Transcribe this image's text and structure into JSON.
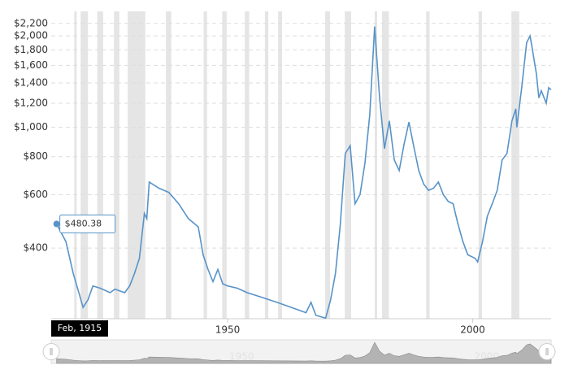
{
  "chart_data": {
    "type": "line",
    "yscale": "log",
    "grid": true,
    "color": "#5893c8",
    "recession_color": "#e5e5e5",
    "x": [
      1915.1,
      1917,
      1918.5,
      1919.5,
      1920.5,
      1921.5,
      1922.5,
      1924,
      1926,
      1927,
      1929,
      1930,
      1931,
      1932,
      1933,
      1933.5,
      1934,
      1936,
      1938,
      1940,
      1942,
      1944,
      1945,
      1946,
      1947,
      1948,
      1949,
      1950,
      1952,
      1954,
      1957,
      1960,
      1963,
      1966,
      1967,
      1968,
      1970,
      1971,
      1972,
      1973,
      1974,
      1975,
      1976,
      1977,
      1978,
      1979,
      1980,
      1981,
      1982,
      1983,
      1984,
      1985,
      1986,
      1987,
      1988,
      1989,
      1990,
      1991,
      1992,
      1993,
      1994,
      1995,
      1996,
      1997,
      1998,
      1999,
      2000.5,
      2001,
      2002,
      2003,
      2004,
      2005,
      2006,
      2007,
      2008,
      2008.8,
      2009,
      2010,
      2011,
      2011.7,
      2012,
      2013,
      2013.5,
      2014,
      2015,
      2015.5,
      2016
    ],
    "values": [
      480.38,
      420,
      330,
      290,
      255,
      270,
      300,
      295,
      285,
      293,
      285,
      300,
      330,
      370,
      520,
      500,
      660,
      630,
      610,
      560,
      500,
      470,
      380,
      340,
      310,
      340,
      305,
      300,
      295,
      285,
      275,
      265,
      255,
      245,
      265,
      240,
      235,
      270,
      330,
      480,
      820,
      870,
      560,
      600,
      760,
      1100,
      2150,
      1250,
      850,
      1050,
      780,
      720,
      880,
      1040,
      860,
      720,
      650,
      620,
      630,
      660,
      600,
      570,
      560,
      480,
      420,
      380,
      370,
      360,
      420,
      510,
      560,
      620,
      780,
      820,
      1050,
      1150,
      1000,
      1350,
      1900,
      2000,
      1880,
      1500,
      1250,
      1320,
      1200,
      1350,
      1330
    ],
    "recessions": [
      [
        1918.7,
        1919.2
      ],
      [
        1920.0,
        1921.5
      ],
      [
        1923.4,
        1924.6
      ],
      [
        1926.8,
        1927.9
      ],
      [
        1929.6,
        1933.2
      ],
      [
        1937.4,
        1938.5
      ],
      [
        1945.1,
        1945.8
      ],
      [
        1948.9,
        1949.8
      ],
      [
        1953.5,
        1954.4
      ],
      [
        1957.6,
        1958.3
      ],
      [
        1960.3,
        1961.1
      ],
      [
        1969.9,
        1970.9
      ],
      [
        1973.9,
        1975.2
      ],
      [
        1980.0,
        1980.5
      ],
      [
        1981.5,
        1982.9
      ],
      [
        1990.5,
        1991.2
      ],
      [
        2001.2,
        2001.9
      ],
      [
        2007.9,
        2009.5
      ]
    ],
    "xlim": [
      1914,
      2016
    ],
    "xticks": [
      1950,
      2000
    ],
    "ylim": [
      234,
      2410
    ],
    "yticks": [
      {
        "value": 400,
        "label": "$400"
      },
      {
        "value": 600,
        "label": "$600"
      },
      {
        "value": 800,
        "label": "$800"
      },
      {
        "value": 1000,
        "label": "$1,000"
      },
      {
        "value": 1200,
        "label": "$1,200"
      },
      {
        "value": 1400,
        "label": "$1,400"
      },
      {
        "value": 1600,
        "label": "$1,600"
      },
      {
        "value": 1800,
        "label": "$1,800"
      },
      {
        "value": 2000,
        "label": "$2,000"
      },
      {
        "value": 2200,
        "label": "$2,200"
      }
    ],
    "tooltip": {
      "x_label": "Feb, 1915",
      "value": 480.38,
      "value_label": "$480.38"
    }
  }
}
